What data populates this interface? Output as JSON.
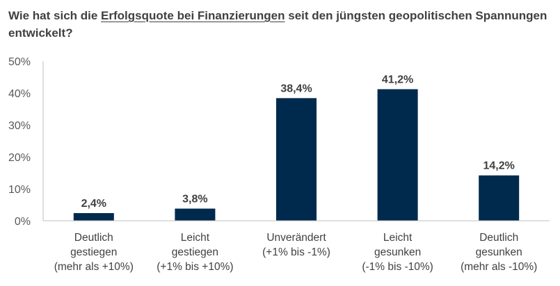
{
  "title": {
    "part1": "Wie hat sich die ",
    "underlined": "Erfolgsquote bei Finanzierungen",
    "part2": " seit den jüngsten geopolitischen Spannungen entwickelt?"
  },
  "chart_data": {
    "type": "bar",
    "title": "Wie hat sich die Erfolgsquote bei Finanzierungen seit den jüngsten geopolitischen Spannungen entwickelt?",
    "categories": [
      [
        "Deutlich",
        "gestiegen",
        "(mehr als +10%)"
      ],
      [
        "Leicht",
        "gestiegen",
        "(+1% bis +10%)"
      ],
      [
        "Unverändert",
        "(+1% bis -1%)"
      ],
      [
        "Leicht",
        "gesunken",
        "(-1% bis -10%)"
      ],
      [
        "Deutlich",
        "gesunken",
        "(mehr als -10%)"
      ]
    ],
    "values": [
      2.4,
      3.8,
      38.4,
      41.2,
      14.2
    ],
    "value_labels": [
      "2,4%",
      "3,8%",
      "38,4%",
      "41,2%",
      "14,2%"
    ],
    "ylim": [
      0,
      50
    ],
    "yticks": [
      "0%",
      "10%",
      "20%",
      "30%",
      "40%",
      "50%"
    ],
    "bar_color": "#002A4D",
    "grid": false,
    "legend": "none"
  }
}
